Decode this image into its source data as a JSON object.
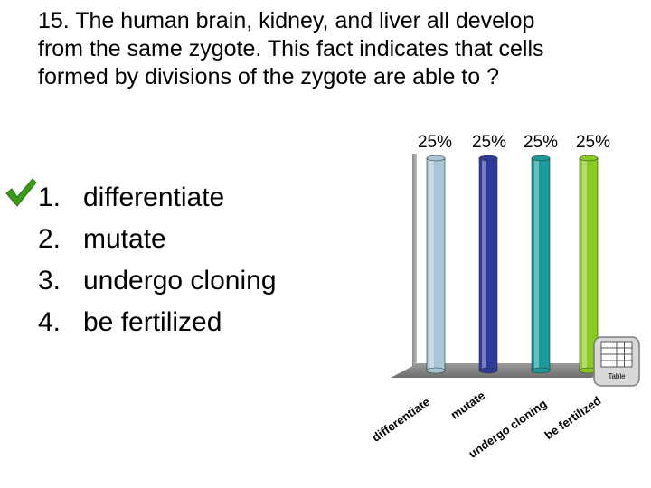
{
  "question": {
    "line1": "15. The human brain, kidney, and liver all develop",
    "line2": "from the same zygote. This fact indicates that cells",
    "line3": "formed by divisions of the zygote are able to ?"
  },
  "answers": [
    {
      "num": "1.",
      "text": "differentiate",
      "correct": true
    },
    {
      "num": "2.",
      "text": "mutate",
      "correct": false
    },
    {
      "num": "3.",
      "text": "undergo cloning",
      "correct": false
    },
    {
      "num": "4.",
      "text": "be fertilized",
      "correct": false
    }
  ],
  "table_icon": {
    "label": "Table",
    "icon": "table-grid-icon"
  },
  "chart_data": {
    "type": "bar",
    "categories": [
      "differentiate",
      "mutate",
      "undergo cloning",
      "be fertilized"
    ],
    "values": [
      25,
      25,
      25,
      25
    ],
    "value_labels": [
      "25%",
      "25%",
      "25%",
      "25%"
    ],
    "colors": [
      "#a8c8d8",
      "#2e3a9a",
      "#1a9a9a",
      "#88cc22"
    ],
    "ylim": [
      0,
      25
    ],
    "title": "",
    "xlabel": "",
    "ylabel": "",
    "grid": false
  }
}
